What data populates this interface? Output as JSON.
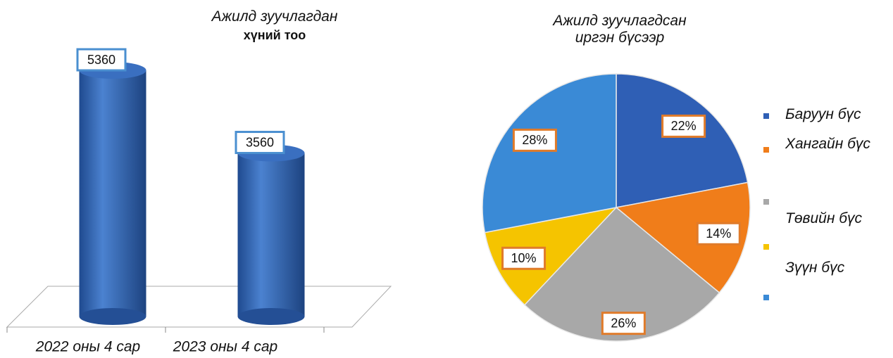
{
  "chart_data": [
    {
      "type": "bar",
      "title": "Ажилд зуучлагдан",
      "subtitle": "хүний тоо",
      "categories": [
        "2022 оны 4 сар",
        "2023 оны 4 сар"
      ],
      "values": [
        5360,
        3560
      ],
      "color": "#2f62b0"
    },
    {
      "type": "pie",
      "title": "Ажилд зуучлагдсан иргэн бүсээр",
      "categories": [
        "Баруун бүс",
        "Хангайн бүс",
        "Төвийн бүс",
        "Зүүн бүс",
        null
      ],
      "values": [
        22,
        14,
        26,
        10,
        28
      ],
      "value_labels": [
        "22%",
        "14%",
        "26%",
        "10%",
        "28%"
      ],
      "colors": [
        "#2f5fb5",
        "#f07d1a",
        "#a8a8a8",
        "#f5c400",
        "#3a8ad6"
      ]
    }
  ]
}
